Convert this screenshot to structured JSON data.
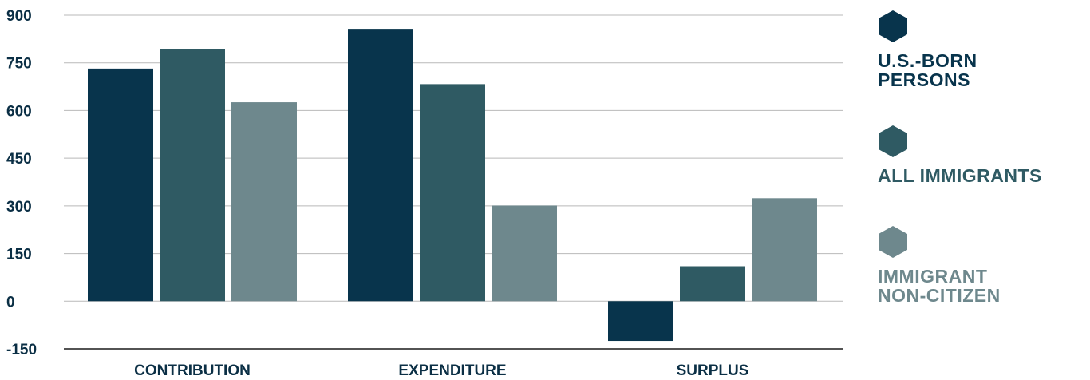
{
  "chart_data": {
    "type": "bar",
    "title": "",
    "xlabel": "",
    "ylabel": "",
    "categories": [
      "CONTRIBUTION",
      "EXPENDITURE",
      "SURPLUS"
    ],
    "ylim": [
      -150,
      900
    ],
    "yticks": [
      "900",
      "750",
      "600",
      "450",
      "300",
      "150",
      "0",
      "-150"
    ],
    "grid": true,
    "legend_position": "right",
    "series": [
      {
        "name": "U.S.-BORN PERSONS",
        "color": "#08344c",
        "values": [
          732,
          857,
          -125
        ]
      },
      {
        "name": "ALL IMMIGRANTS",
        "color": "#2f5a63",
        "values": [
          793,
          683,
          110
        ]
      },
      {
        "name": "IMMIGRANT NON-CITIZEN",
        "color": "#6e888d",
        "values": [
          626,
          301,
          324
        ]
      }
    ]
  },
  "legend": {
    "items": [
      {
        "label": "U.S.-BORN\nPERSONS",
        "color": "#08344c",
        "icon": "hexagon-icon"
      },
      {
        "label": "ALL IMMIGRANTS",
        "color": "#2f5a63",
        "icon": "hexagon-icon"
      },
      {
        "label": "IMMIGRANT\nNON-CITIZEN",
        "color": "#6e888d",
        "icon": "hexagon-icon"
      }
    ]
  }
}
